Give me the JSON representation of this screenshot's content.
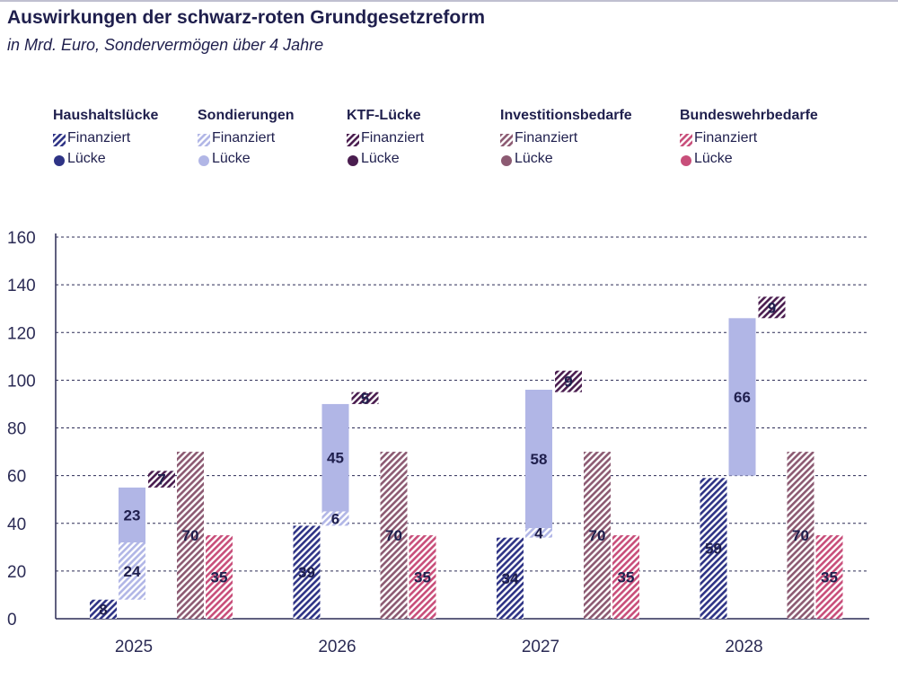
{
  "header": {
    "title": "Auswirkungen der schwarz-roten Grundgesetzreform",
    "subtitle": "in Mrd. Euro, Sondervermögen über 4 Jahre"
  },
  "legend": [
    {
      "name": "Haushaltslücke",
      "financed_label": "Finanziert",
      "gap_label": "Lücke",
      "color": "#2e3385"
    },
    {
      "name": "Sondierungen",
      "financed_label": "Finanziert",
      "gap_label": "Lücke",
      "color": "#b1b6e6"
    },
    {
      "name": "KTF-Lücke",
      "financed_label": "Finanziert",
      "gap_label": "Lücke",
      "color": "#4a1d4f"
    },
    {
      "name": "Investitionsbedarfe",
      "financed_label": "Finanziert",
      "gap_label": "Lücke",
      "color": "#8c5a72"
    },
    {
      "name": "Bundeswehrbedarfe",
      "financed_label": "Finanziert",
      "gap_label": "Lücke",
      "color": "#c84e7a"
    }
  ],
  "chart_data": {
    "type": "bar",
    "title": "Auswirkungen der schwarz-roten Grundgesetzreform",
    "subtitle": "in Mrd. Euro, Sondervermögen über 4 Jahre",
    "xlabel": "",
    "ylabel": "",
    "ylim": [
      0,
      160
    ],
    "yticks": [
      0,
      20,
      40,
      60,
      80,
      100,
      120,
      140,
      160
    ],
    "grid": true,
    "categories": [
      "2025",
      "2026",
      "2027",
      "2028"
    ],
    "series": [
      {
        "name": "Haushaltslücke (Finanziert)",
        "values": [
          8,
          39,
          34,
          59
        ],
        "base": [
          0,
          0,
          0,
          0
        ]
      },
      {
        "name": "Sondierungen (Finanziert)",
        "values": [
          24,
          6,
          4,
          null
        ],
        "base": [
          8,
          39,
          34,
          null
        ]
      },
      {
        "name": "Sondierungen (Lücke)",
        "values": [
          23,
          45,
          58,
          66
        ],
        "base": [
          32,
          45,
          38,
          60
        ]
      },
      {
        "name": "KTF-Lücke (Finanziert)",
        "values": [
          7,
          5,
          9,
          9
        ],
        "base": [
          55,
          90,
          95,
          126
        ]
      },
      {
        "name": "Investitionsbedarfe (Finanziert)",
        "values": [
          70,
          70,
          70,
          70
        ],
        "base": [
          0,
          0,
          0,
          0
        ]
      },
      {
        "name": "Bundeswehrbedarfe (Finanziert)",
        "values": [
          35,
          35,
          35,
          35
        ],
        "base": [
          0,
          0,
          0,
          0
        ]
      }
    ]
  }
}
